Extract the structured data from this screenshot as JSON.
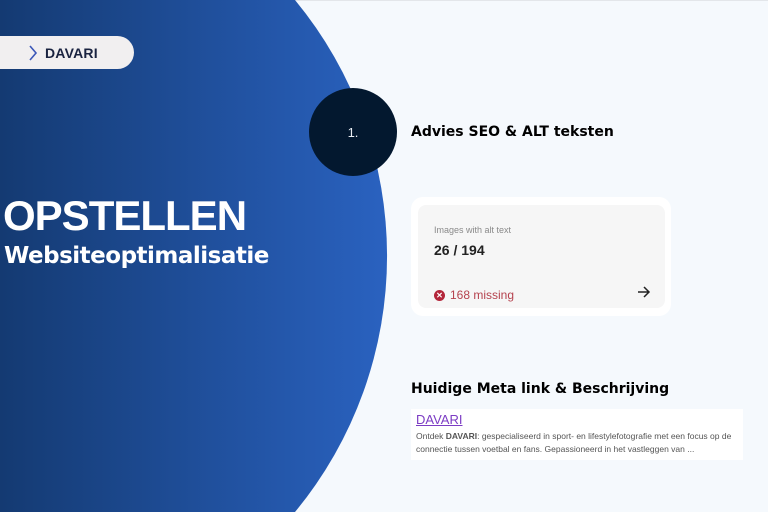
{
  "brand": {
    "label": "DAVARI"
  },
  "hero": {
    "title": "OPSTELLEN",
    "subtitle": "Websiteoptimalisatie"
  },
  "step": {
    "number": "1.",
    "heading": "Advies SEO & ALT teksten"
  },
  "alt_card": {
    "label": "Images with alt text",
    "value": "26 / 194",
    "missing": "168 missing",
    "missing_color": "#b5424e"
  },
  "meta": {
    "heading": "Huidige Meta link & Beschrijving",
    "link": "DAVARI",
    "desc_prefix": "Ontdek ",
    "desc_brand": "DAVARI",
    "desc_rest": ": gespecialiseerd in sport- en lifestylefotografie met een focus op de connectie tussen voetbal en fans. Gepassioneerd in het vastleggen van ..."
  },
  "colors": {
    "navy": "#143a72",
    "blue": "#2a62c0",
    "step_circle": "#03182f",
    "link": "#7c3cc4"
  }
}
